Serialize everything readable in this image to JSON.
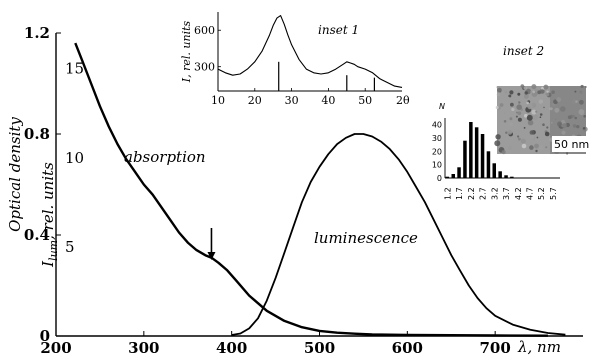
{
  "chart_data": [
    {
      "type": "line",
      "xlabel": "λ, nm",
      "ylabel": "Optical density",
      "ylabel2": "I_lum, rel. units",
      "ylabel2_main": "I",
      "ylabel2_sub": "lum",
      "ylabel2_rest": ", rel. units",
      "xlim": [
        200,
        800
      ],
      "ylim": [
        0,
        1.2
      ],
      "ylim2": [
        0,
        17
      ],
      "x_ticks": [
        200,
        300,
        400,
        500,
        600,
        700
      ],
      "y_ticks": [
        0,
        0.4,
        0.8,
        1.2
      ],
      "y_tick_labels": [
        "0",
        "0.4",
        "0.8",
        "1.2"
      ],
      "y2_ticks": [
        5,
        10,
        15
      ],
      "annotations": {
        "absorption": "absorption",
        "luminescence": "luminescence",
        "arrow_x": 377
      },
      "series": [
        {
          "name": "absorption",
          "axis": "left",
          "x": [
            222,
            230,
            240,
            250,
            260,
            270,
            280,
            290,
            300,
            310,
            320,
            330,
            340,
            350,
            360,
            370,
            377,
            385,
            395,
            405,
            420,
            440,
            460,
            480,
            500,
            520,
            540,
            560,
            580,
            600,
            650,
            700,
            760
          ],
          "y": [
            1.16,
            1.09,
            1.0,
            0.91,
            0.83,
            0.76,
            0.7,
            0.65,
            0.6,
            0.56,
            0.51,
            0.46,
            0.41,
            0.37,
            0.34,
            0.32,
            0.31,
            0.29,
            0.26,
            0.22,
            0.16,
            0.1,
            0.06,
            0.035,
            0.02,
            0.013,
            0.009,
            0.006,
            0.005,
            0.004,
            0.003,
            0.002,
            0.001
          ]
        },
        {
          "name": "luminescence",
          "axis": "left",
          "x": [
            400,
            410,
            420,
            430,
            440,
            450,
            460,
            470,
            480,
            490,
            500,
            510,
            520,
            530,
            540,
            550,
            560,
            570,
            580,
            590,
            600,
            610,
            620,
            630,
            640,
            650,
            660,
            670,
            680,
            690,
            700,
            720,
            740,
            760,
            780
          ],
          "y": [
            0.004,
            0.01,
            0.03,
            0.07,
            0.14,
            0.23,
            0.33,
            0.43,
            0.53,
            0.61,
            0.67,
            0.72,
            0.76,
            0.785,
            0.8,
            0.8,
            0.79,
            0.77,
            0.74,
            0.7,
            0.65,
            0.59,
            0.53,
            0.46,
            0.39,
            0.32,
            0.26,
            0.2,
            0.15,
            0.11,
            0.08,
            0.045,
            0.025,
            0.012,
            0.005
          ]
        }
      ]
    },
    {
      "type": "line",
      "title": "inset 1",
      "ylabel": "I, rel. units",
      "xlabel": "2θ",
      "xlim": [
        10,
        60
      ],
      "ylim": [
        100,
        750
      ],
      "x_ticks": [
        10,
        20,
        30,
        40,
        50
      ],
      "y_ticks": [
        300,
        600
      ],
      "x": [
        10,
        12,
        14,
        16,
        18,
        20,
        22,
        24,
        25,
        26,
        27,
        28,
        29,
        30,
        32,
        34,
        36,
        38,
        40,
        42,
        44,
        45,
        46,
        47,
        48,
        50,
        52,
        54,
        56,
        58,
        60
      ],
      "y": [
        280,
        250,
        230,
        240,
        280,
        340,
        430,
        560,
        640,
        700,
        720,
        650,
        560,
        480,
        360,
        280,
        250,
        240,
        250,
        280,
        320,
        340,
        330,
        320,
        300,
        280,
        250,
        200,
        170,
        140,
        130
      ],
      "reference_lines": [
        {
          "x": 26.5,
          "height": 240
        },
        {
          "x": 45.0,
          "height": 130
        },
        {
          "x": 52.5,
          "height": 110
        }
      ]
    },
    {
      "type": "bar",
      "title": "inset 2",
      "ylabel": "N",
      "categories": [
        "1.2",
        "1.7",
        "2.2",
        "2.7",
        "3.2",
        "3.7",
        "4.2",
        "4.7",
        "5.2",
        "5.7"
      ],
      "x": [
        1.2,
        1.45,
        1.7,
        1.95,
        2.2,
        2.45,
        2.7,
        2.95,
        3.2,
        3.45,
        3.7,
        3.95
      ],
      "values": [
        1,
        3,
        8,
        28,
        42,
        38,
        33,
        20,
        11,
        5,
        2,
        1
      ],
      "ylim": [
        0,
        45
      ],
      "y_ticks": [
        0,
        10,
        20,
        30,
        40
      ],
      "photo_label": "50 nm"
    }
  ]
}
